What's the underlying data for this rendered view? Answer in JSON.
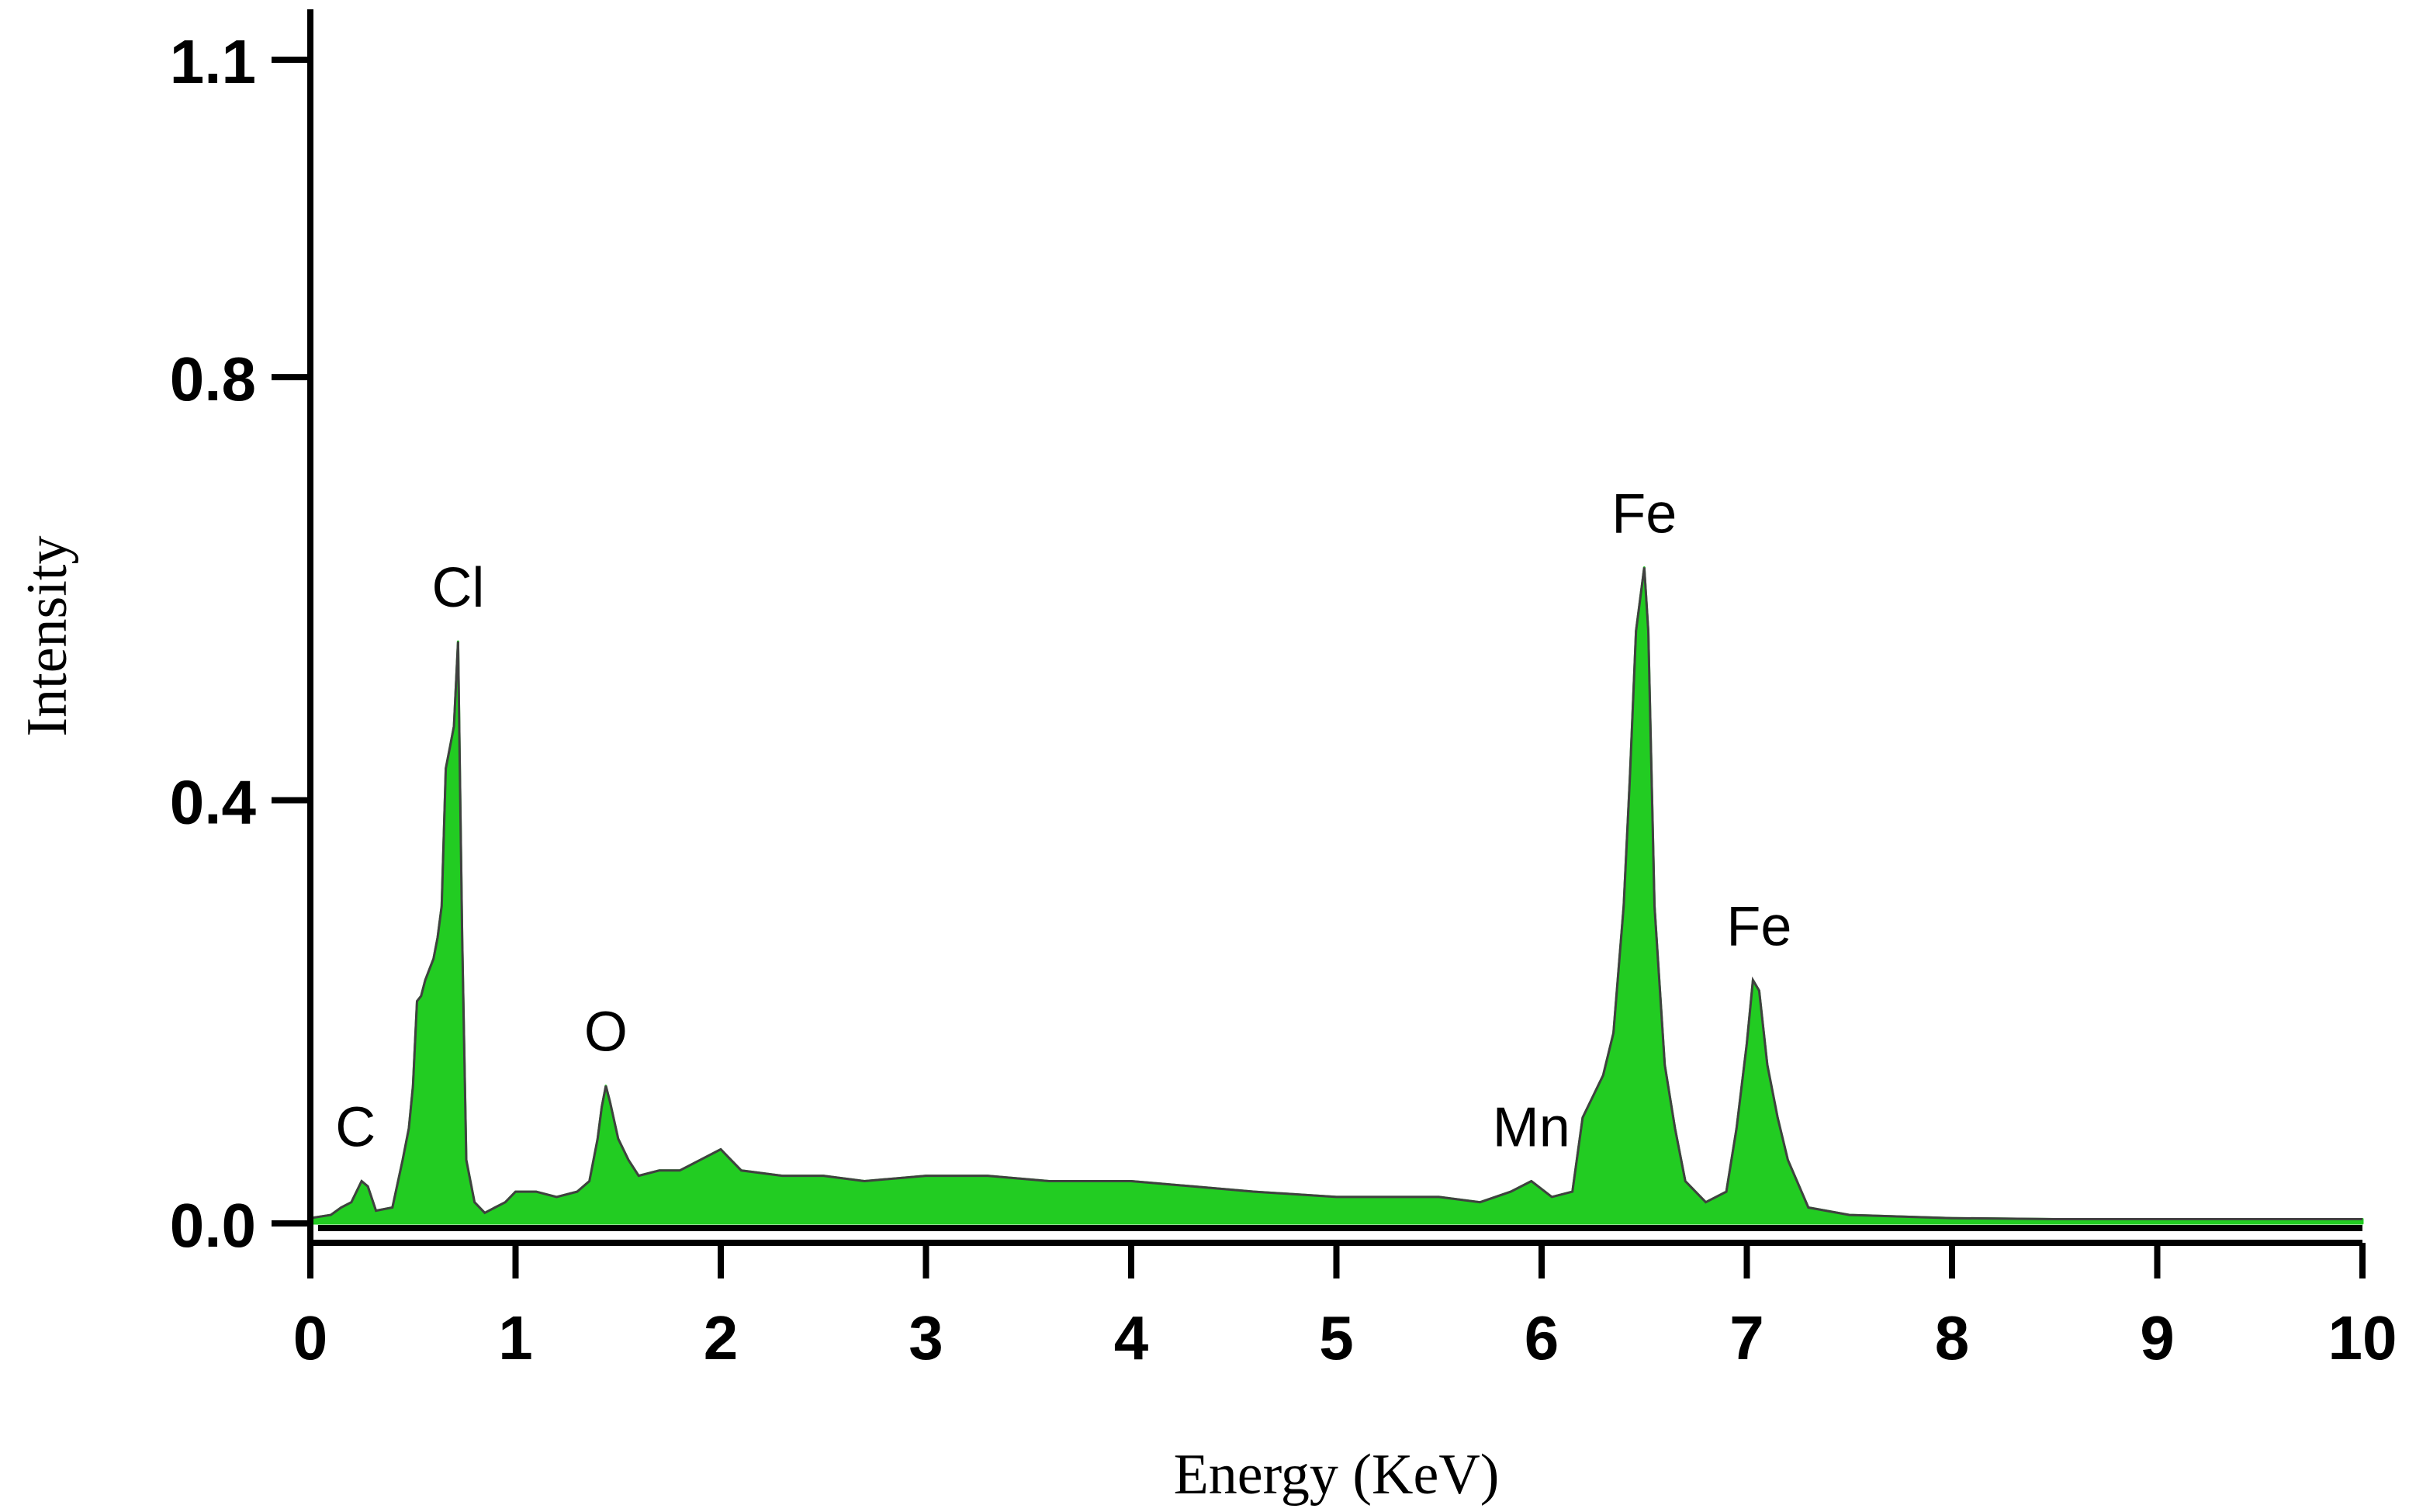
{
  "chart_data": {
    "type": "area",
    "xlabel": "Energy (KeV)",
    "ylabel": "Intensity",
    "xlim": [
      0,
      10
    ],
    "ylim": [
      0,
      1.1
    ],
    "x_ticks": [
      0,
      1,
      2,
      3,
      4,
      5,
      6,
      7,
      8,
      9,
      10
    ],
    "x_tick_labels": [
      "0",
      "1",
      "2",
      "3",
      "4",
      "5",
      "6",
      "7",
      "8",
      "9",
      "10"
    ],
    "y_ticks": [
      0.0,
      0.4,
      0.8,
      1.1
    ],
    "y_tick_labels": [
      "0.0",
      "0.4",
      "0.8",
      "1.1"
    ],
    "grid": false,
    "fill_color": "#22cc22",
    "line_color": "#404040",
    "series": [
      {
        "x": [
          0.0,
          0.1,
          0.15,
          0.2,
          0.25,
          0.28,
          0.32,
          0.4,
          0.45,
          0.48,
          0.5,
          0.52,
          0.54,
          0.56,
          0.58,
          0.6,
          0.62,
          0.64,
          0.66,
          0.68,
          0.7,
          0.72,
          0.74,
          0.76,
          0.8,
          0.85,
          0.9,
          0.95,
          1.0,
          1.1,
          1.2,
          1.3,
          1.36,
          1.4,
          1.42,
          1.44,
          1.46,
          1.5,
          1.55,
          1.6,
          1.7,
          1.8,
          1.9,
          2.0,
          2.05,
          2.1,
          2.3,
          2.5,
          2.7,
          3.0,
          3.3,
          3.6,
          4.0,
          4.3,
          4.6,
          5.0,
          5.3,
          5.5,
          5.7,
          5.85,
          5.95,
          6.05,
          6.15,
          6.2,
          6.25,
          6.3,
          6.35,
          6.4,
          6.43,
          6.46,
          6.48,
          6.5,
          6.52,
          6.55,
          6.6,
          6.65,
          6.7,
          6.8,
          6.9,
          6.95,
          7.0,
          7.03,
          7.06,
          7.1,
          7.15,
          7.2,
          7.3,
          7.5,
          8.0,
          8.5,
          9.0,
          9.5,
          10.0
        ],
        "y": [
          0.005,
          0.008,
          0.015,
          0.02,
          0.04,
          0.035,
          0.012,
          0.015,
          0.06,
          0.09,
          0.13,
          0.21,
          0.215,
          0.23,
          0.24,
          0.25,
          0.27,
          0.3,
          0.43,
          0.45,
          0.47,
          0.55,
          0.27,
          0.06,
          0.02,
          0.01,
          0.015,
          0.02,
          0.03,
          0.03,
          0.025,
          0.03,
          0.04,
          0.08,
          0.11,
          0.13,
          0.115,
          0.08,
          0.06,
          0.045,
          0.05,
          0.05,
          0.06,
          0.07,
          0.06,
          0.05,
          0.045,
          0.045,
          0.04,
          0.045,
          0.045,
          0.04,
          0.04,
          0.035,
          0.03,
          0.025,
          0.025,
          0.025,
          0.02,
          0.03,
          0.04,
          0.025,
          0.03,
          0.1,
          0.12,
          0.14,
          0.18,
          0.3,
          0.42,
          0.56,
          0.59,
          0.62,
          0.56,
          0.3,
          0.15,
          0.09,
          0.04,
          0.02,
          0.03,
          0.09,
          0.17,
          0.23,
          0.22,
          0.15,
          0.1,
          0.06,
          0.015,
          0.008,
          0.005,
          0.004,
          0.004,
          0.004,
          0.004
        ]
      }
    ],
    "annotations": [
      {
        "text": "C",
        "x": 0.22,
        "y": 0.04
      },
      {
        "text": "Cl",
        "x": 0.72,
        "y": 0.55
      },
      {
        "text": "O",
        "x": 1.44,
        "y": 0.13
      },
      {
        "text": "Mn",
        "x": 5.95,
        "y": 0.04
      },
      {
        "text": "Fe",
        "x": 6.5,
        "y": 0.62
      },
      {
        "text": "Fe",
        "x": 7.06,
        "y": 0.23
      }
    ]
  }
}
